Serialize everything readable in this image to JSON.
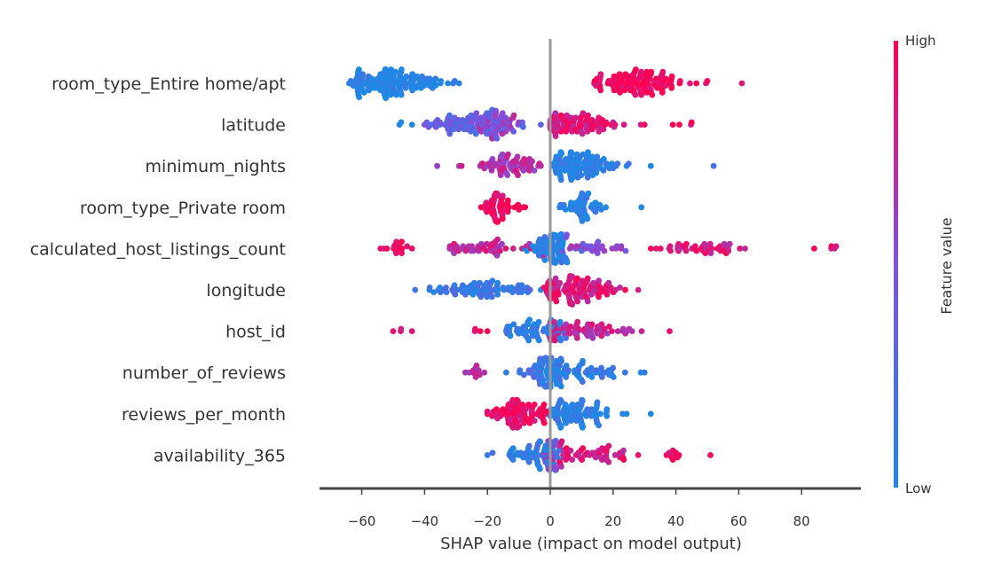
{
  "chart_data": {
    "type": "scatter",
    "subtype": "shap-beeswarm",
    "title": "",
    "xlabel": "SHAP value (impact on model output)",
    "ylabel": "",
    "xlim": [
      -72,
      98
    ],
    "xticks": [
      -60,
      -40,
      -20,
      0,
      20,
      40,
      60,
      80
    ],
    "grid": false,
    "colors": {
      "low": "#1e88e5",
      "high": "#ff0052",
      "zero_line": "#999999"
    },
    "colorbar": {
      "title": "Feature value",
      "high_label": "High",
      "low_label": "Low"
    },
    "features": [
      {
        "name": "room_type_Entire home/apt",
        "clusters": [
          {
            "center": -50,
            "spread": 9,
            "count": 140,
            "min": -64,
            "max": -29,
            "color": 0.02
          },
          {
            "center": 28,
            "spread": 7,
            "count": 120,
            "min": 14,
            "max": 50,
            "color": 0.97
          },
          {
            "center": 61,
            "spread": 0,
            "count": 1,
            "min": 61,
            "max": 61,
            "color": 0.95
          }
        ]
      },
      {
        "name": "latitude",
        "clusters": [
          {
            "center": -47,
            "spread": 1,
            "count": 3,
            "min": -48,
            "max": -44,
            "color": 0.05
          },
          {
            "center": -25,
            "spread": 8,
            "count": 80,
            "min": -40,
            "max": -3,
            "color": 0.35
          },
          {
            "center": -18,
            "spread": 4,
            "count": 50,
            "min": -25,
            "max": -10,
            "color": 0.6
          },
          {
            "center": 8,
            "spread": 7,
            "count": 90,
            "min": 0,
            "max": 30,
            "color": 0.85
          },
          {
            "center": 42,
            "spread": 2,
            "count": 4,
            "min": 39,
            "max": 45,
            "color": 0.95
          }
        ]
      },
      {
        "name": "minimum_nights",
        "clusters": [
          {
            "center": -14,
            "spread": 5,
            "count": 70,
            "min": -36,
            "max": -3,
            "color": 0.7
          },
          {
            "center": 10,
            "spread": 6,
            "count": 110,
            "min": 1,
            "max": 32,
            "color": 0.05
          },
          {
            "center": 52,
            "spread": 0,
            "count": 1,
            "min": 52,
            "max": 52,
            "color": 0.05
          }
        ]
      },
      {
        "name": "room_type_Private room",
        "clusters": [
          {
            "center": -17,
            "spread": 3,
            "count": 55,
            "min": -22,
            "max": -8,
            "color": 0.97
          },
          {
            "center": 10,
            "spread": 3,
            "count": 55,
            "min": 3,
            "max": 29,
            "color": 0.03
          }
        ]
      },
      {
        "name": "calculated_host_listings_count",
        "clusters": [
          {
            "center": -49,
            "spread": 3,
            "count": 18,
            "min": -54,
            "max": -44,
            "color": 0.95
          },
          {
            "center": -20,
            "spread": 8,
            "count": 50,
            "min": -32,
            "max": -2,
            "color": 0.75
          },
          {
            "center": 0,
            "spread": 3,
            "count": 80,
            "min": -8,
            "max": 10,
            "color": 0.05
          },
          {
            "center": 15,
            "spread": 6,
            "count": 30,
            "min": 4,
            "max": 24,
            "color": 0.55
          },
          {
            "center": 46,
            "spread": 8,
            "count": 45,
            "min": 32,
            "max": 62,
            "color": 0.85
          },
          {
            "center": 88,
            "spread": 2,
            "count": 5,
            "min": 84,
            "max": 91,
            "color": 0.9
          }
        ]
      },
      {
        "name": "longitude",
        "clusters": [
          {
            "center": -22,
            "spread": 9,
            "count": 80,
            "min": -43,
            "max": -3,
            "color": 0.15
          },
          {
            "center": 8,
            "spread": 7,
            "count": 110,
            "min": -2,
            "max": 28,
            "color": 0.85
          }
        ]
      },
      {
        "name": "host_id",
        "clusters": [
          {
            "center": -48,
            "spread": 1,
            "count": 4,
            "min": -50,
            "max": -44,
            "color": 0.97
          },
          {
            "center": -22,
            "spread": 1,
            "count": 4,
            "min": -24,
            "max": -20,
            "color": 0.97
          },
          {
            "center": -5,
            "spread": 5,
            "count": 60,
            "min": -14,
            "max": 5,
            "color": 0.1
          },
          {
            "center": 10,
            "spread": 8,
            "count": 70,
            "min": 0,
            "max": 38,
            "color": 0.75
          }
        ]
      },
      {
        "name": "number_of_reviews",
        "clusters": [
          {
            "center": -24,
            "spread": 1,
            "count": 12,
            "min": -27,
            "max": -21,
            "color": 0.75
          },
          {
            "center": -5,
            "spread": 4,
            "count": 30,
            "min": -14,
            "max": 3,
            "color": 0.2
          },
          {
            "center": 0,
            "spread": 2,
            "count": 50,
            "min": -4,
            "max": 5,
            "color": 0.05
          },
          {
            "center": 12,
            "spread": 7,
            "count": 50,
            "min": 3,
            "max": 30,
            "color": 0.1
          }
        ]
      },
      {
        "name": "reviews_per_month",
        "clusters": [
          {
            "center": -10,
            "spread": 5,
            "count": 90,
            "min": -20,
            "max": -1,
            "color": 0.95
          },
          {
            "center": 8,
            "spread": 6,
            "count": 90,
            "min": 0,
            "max": 32,
            "color": 0.05
          }
        ]
      },
      {
        "name": "availability_365",
        "clusters": [
          {
            "center": -5,
            "spread": 5,
            "count": 70,
            "min": -20,
            "max": 3,
            "color": 0.1
          },
          {
            "center": 0,
            "spread": 1,
            "count": 30,
            "min": -2,
            "max": 2,
            "color": 0.6
          },
          {
            "center": 12,
            "spread": 7,
            "count": 55,
            "min": 3,
            "max": 28,
            "color": 0.85
          },
          {
            "center": 39,
            "spread": 1,
            "count": 10,
            "min": 37,
            "max": 41,
            "color": 0.95
          },
          {
            "center": 51,
            "spread": 0,
            "count": 1,
            "min": 51,
            "max": 51,
            "color": 0.95
          }
        ]
      }
    ]
  }
}
